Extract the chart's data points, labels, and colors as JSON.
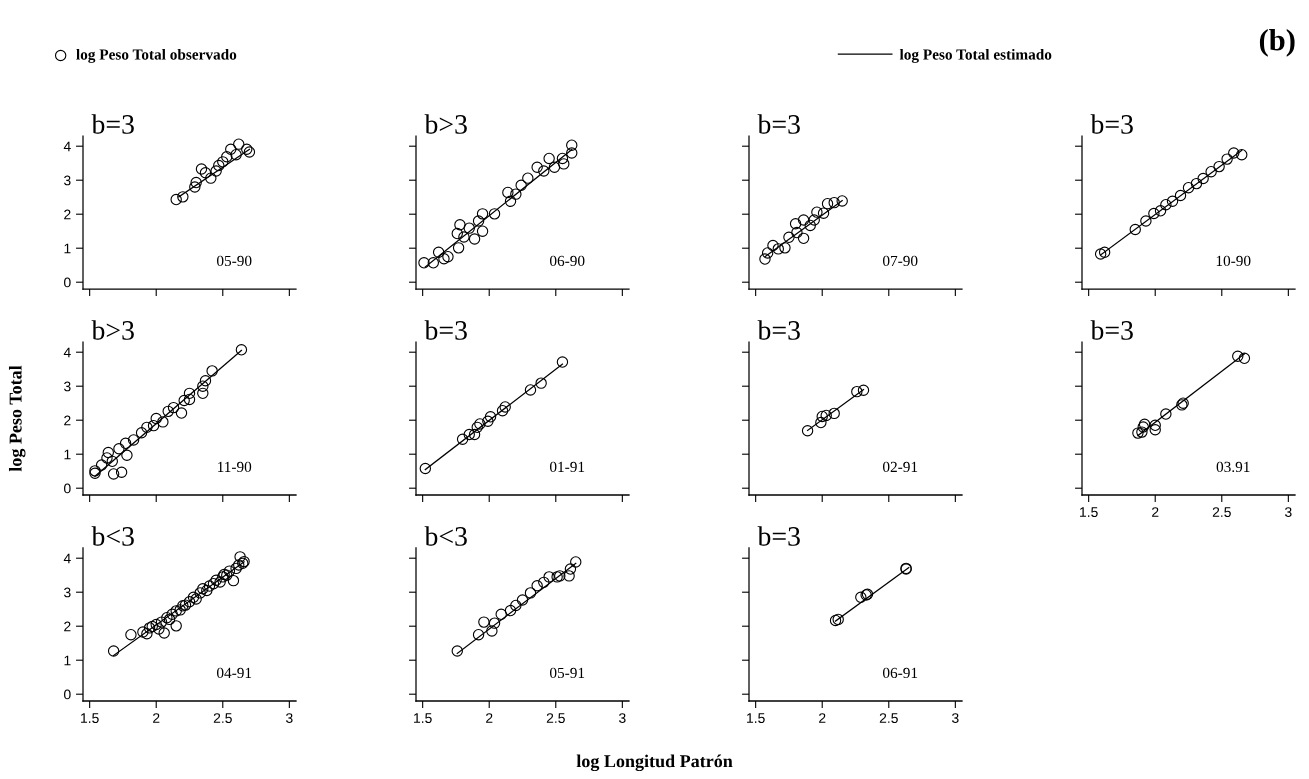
{
  "chart_data": [
    {
      "type": "scatter",
      "legend": "top",
      "tick_labels": "y",
      "xlim": [
        1.45,
        3.05
      ],
      "ylim": [
        -0.2,
        4.3
      ],
      "xticks": [
        1.5,
        2,
        2.5,
        3
      ],
      "yticks": [
        0,
        1,
        2,
        3,
        4
      ],
      "annotations": [
        "b=3",
        "05-90"
      ],
      "series": [
        {
          "name": "log Peso Total observado",
          "marker": "circle",
          "color": "#000000",
          "x": [
            2.15,
            2.2,
            2.29,
            2.3,
            2.34,
            2.37,
            2.41,
            2.45,
            2.47,
            2.5,
            2.53,
            2.56,
            2.6,
            2.62,
            2.68,
            2.7
          ],
          "values": [
            2.43,
            2.51,
            2.8,
            2.93,
            3.33,
            3.22,
            3.06,
            3.27,
            3.43,
            3.54,
            3.69,
            3.91,
            3.75,
            4.06,
            3.91,
            3.83
          ]
        },
        {
          "name": "log Peso Total estimado",
          "type": "line",
          "color": "#000000",
          "x": [
            2.17,
            2.7
          ],
          "values": [
            2.51,
            3.91
          ]
        }
      ]
    },
    {
      "type": "scatter",
      "tick_labels": false,
      "xlim": [
        1.45,
        3.05
      ],
      "ylim": [
        -0.2,
        4.3
      ],
      "xticks": [
        1.5,
        2,
        2.5,
        3
      ],
      "yticks": [
        0,
        1,
        2,
        3,
        4
      ],
      "annotations": [
        "b>3",
        "06-90"
      ],
      "series": [
        {
          "marker": "circle",
          "color": "#000000",
          "x": [
            1.51,
            1.58,
            1.62,
            1.66,
            1.69,
            1.76,
            1.78,
            1.77,
            1.81,
            1.85,
            1.89,
            1.92,
            1.95,
            1.95,
            2.04,
            2.16,
            2.14,
            2.2,
            2.24,
            2.29,
            2.36,
            2.41,
            2.45,
            2.49,
            2.55,
            2.56,
            2.62,
            2.62
          ],
          "values": [
            0.57,
            0.57,
            0.88,
            0.69,
            0.75,
            1.43,
            1.69,
            1.01,
            1.33,
            1.59,
            1.27,
            1.8,
            1.5,
            2.01,
            2.01,
            2.38,
            2.64,
            2.59,
            2.85,
            3.06,
            3.38,
            3.27,
            3.64,
            3.38,
            3.64,
            3.48,
            3.8,
            4.03
          ]
        },
        {
          "type": "line",
          "color": "#000000",
          "x": [
            1.52,
            2.62
          ],
          "values": [
            0.45,
            3.9
          ]
        }
      ]
    },
    {
      "type": "scatter",
      "tick_labels": false,
      "xlim": [
        1.45,
        3.05
      ],
      "ylim": [
        -0.2,
        4.3
      ],
      "xticks": [
        1.5,
        2,
        2.5,
        3
      ],
      "yticks": [
        0,
        1,
        2,
        3,
        4
      ],
      "annotations": [
        "b=3",
        "07-90"
      ],
      "series": [
        {
          "marker": "circle",
          "color": "#000000",
          "x": [
            1.57,
            1.59,
            1.63,
            1.67,
            1.72,
            1.75,
            1.8,
            1.81,
            1.86,
            1.86,
            1.91,
            1.94,
            1.96,
            2.01,
            2.04,
            2.09,
            2.15
          ],
          "values": [
            0.68,
            0.86,
            1.08,
            0.98,
            1.01,
            1.32,
            1.72,
            1.46,
            1.29,
            1.83,
            1.67,
            1.83,
            2.06,
            2.03,
            2.31,
            2.34,
            2.39
          ]
        },
        {
          "type": "line",
          "color": "#000000",
          "x": [
            1.57,
            2.15
          ],
          "values": [
            0.75,
            2.4
          ]
        }
      ]
    },
    {
      "type": "scatter",
      "title": "(b)",
      "tick_labels": false,
      "xlim": [
        1.45,
        3.05
      ],
      "ylim": [
        -0.2,
        4.3
      ],
      "xticks": [
        1.5,
        2,
        2.5,
        3
      ],
      "yticks": [
        0,
        1,
        2,
        3,
        4
      ],
      "annotations": [
        "b=3",
        "10-90"
      ],
      "series": [
        {
          "marker": "circle",
          "color": "#000000",
          "x": [
            1.59,
            1.62,
            1.85,
            1.93,
            1.99,
            2.04,
            2.08,
            2.13,
            2.19,
            2.25,
            2.31,
            2.36,
            2.42,
            2.48,
            2.54,
            2.59,
            2.65
          ],
          "values": [
            0.83,
            0.88,
            1.55,
            1.8,
            2.02,
            2.1,
            2.28,
            2.38,
            2.55,
            2.78,
            2.9,
            3.05,
            3.25,
            3.4,
            3.62,
            3.8,
            3.75
          ]
        },
        {
          "type": "line",
          "color": "#000000",
          "x": [
            1.59,
            2.65
          ],
          "values": [
            0.8,
            3.88
          ]
        }
      ]
    },
    {
      "type": "scatter",
      "ylabel": "log Peso Total",
      "tick_labels": "y",
      "xlim": [
        1.45,
        3.05
      ],
      "ylim": [
        -0.2,
        4.3
      ],
      "xticks": [
        1.5,
        2,
        2.5,
        3
      ],
      "yticks": [
        0,
        1,
        2,
        3,
        4
      ],
      "annotations": [
        "b>3",
        "11-90"
      ],
      "series": [
        {
          "marker": "circle",
          "color": "#000000",
          "x": [
            1.54,
            1.54,
            1.59,
            1.63,
            1.64,
            1.68,
            1.74,
            1.67,
            1.72,
            1.77,
            1.78,
            1.83,
            1.89,
            1.93,
            1.98,
            2.0,
            2.05,
            2.09,
            2.13,
            2.19,
            2.21,
            2.25,
            2.25,
            2.35,
            2.35,
            2.37,
            2.42,
            2.64
          ],
          "values": [
            0.44,
            0.51,
            0.68,
            0.89,
            1.05,
            0.42,
            0.47,
            0.79,
            1.16,
            1.32,
            0.97,
            1.42,
            1.63,
            1.79,
            1.84,
            2.05,
            1.95,
            2.26,
            2.37,
            2.21,
            2.58,
            2.79,
            2.61,
            3.0,
            2.79,
            3.16,
            3.45,
            4.07
          ]
        },
        {
          "type": "line",
          "color": "#000000",
          "x": [
            1.54,
            2.64
          ],
          "values": [
            0.35,
            4.05
          ]
        }
      ]
    },
    {
      "type": "scatter",
      "tick_labels": false,
      "xlim": [
        1.45,
        3.05
      ],
      "ylim": [
        -0.2,
        4.3
      ],
      "xticks": [
        1.5,
        2,
        2.5,
        3
      ],
      "yticks": [
        0,
        1,
        2,
        3,
        4
      ],
      "annotations": [
        "b=3",
        "01-91"
      ],
      "series": [
        {
          "marker": "circle",
          "color": "#000000",
          "x": [
            1.52,
            1.8,
            1.85,
            1.89,
            1.91,
            1.93,
            1.99,
            2.01,
            2.1,
            2.12,
            2.31,
            2.39,
            2.55
          ],
          "values": [
            0.58,
            1.44,
            1.58,
            1.58,
            1.79,
            1.89,
            1.97,
            2.1,
            2.28,
            2.39,
            2.89,
            3.09,
            3.71
          ]
        },
        {
          "type": "line",
          "color": "#000000",
          "x": [
            1.52,
            2.55
          ],
          "values": [
            0.55,
            3.65
          ]
        }
      ]
    },
    {
      "type": "scatter",
      "tick_labels": false,
      "xlim": [
        1.45,
        3.05
      ],
      "ylim": [
        -0.2,
        4.3
      ],
      "xticks": [
        1.5,
        2,
        2.5,
        3
      ],
      "yticks": [
        0,
        1,
        2,
        3,
        4
      ],
      "annotations": [
        "b=3",
        "02-91"
      ],
      "series": [
        {
          "marker": "circle",
          "color": "#000000",
          "x": [
            1.89,
            1.99,
            2.0,
            2.03,
            2.09,
            2.26,
            2.31
          ],
          "values": [
            1.69,
            1.93,
            2.11,
            2.14,
            2.2,
            2.84,
            2.88
          ]
        },
        {
          "type": "line",
          "color": "#000000",
          "x": [
            1.89,
            2.31
          ],
          "values": [
            1.7,
            2.9
          ]
        }
      ]
    },
    {
      "type": "scatter",
      "tick_labels": "x",
      "xlim": [
        1.45,
        3.05
      ],
      "ylim": [
        -0.2,
        4.3
      ],
      "xticks": [
        1.5,
        2,
        2.5,
        3
      ],
      "yticks": [
        0,
        1,
        2,
        3,
        4
      ],
      "annotations": [
        "b=3",
        "03.91"
      ],
      "series": [
        {
          "marker": "circle",
          "color": "#000000",
          "x": [
            1.87,
            1.9,
            1.91,
            1.92,
            2.0,
            2.0,
            2.08,
            2.2,
            2.21,
            2.62,
            2.67
          ],
          "values": [
            1.62,
            1.65,
            1.8,
            1.88,
            1.72,
            1.85,
            2.18,
            2.45,
            2.5,
            3.88,
            3.82
          ]
        },
        {
          "type": "line",
          "color": "#000000",
          "x": [
            1.87,
            2.67
          ],
          "values": [
            1.55,
            3.95
          ]
        }
      ]
    },
    {
      "type": "scatter",
      "xlim": [
        1.45,
        3.05
      ],
      "ylim": [
        -0.2,
        4.3
      ],
      "xticks": [
        1.5,
        2,
        2.5,
        3
      ],
      "yticks": [
        0,
        1,
        2,
        3,
        4
      ],
      "annotations": [
        "b<3",
        "04-91"
      ],
      "series": [
        {
          "marker": "circle",
          "color": "#000000",
          "x": [
            1.68,
            1.81,
            1.9,
            1.93,
            1.95,
            1.97,
            2.0,
            2.02,
            2.04,
            2.06,
            2.08,
            2.1,
            2.12,
            2.15,
            2.15,
            2.18,
            2.2,
            2.22,
            2.25,
            2.28,
            2.3,
            2.33,
            2.35,
            2.38,
            2.4,
            2.43,
            2.45,
            2.48,
            2.5,
            2.51,
            2.53,
            2.55,
            2.58,
            2.6,
            2.62,
            2.63,
            2.65,
            2.66
          ],
          "values": [
            1.27,
            1.75,
            1.83,
            1.78,
            1.95,
            1.99,
            2.05,
            1.92,
            2.12,
            1.8,
            2.25,
            2.2,
            2.35,
            2.01,
            2.45,
            2.48,
            2.6,
            2.62,
            2.72,
            2.85,
            2.8,
            2.98,
            3.1,
            3.05,
            3.18,
            3.25,
            3.35,
            3.3,
            3.45,
            3.52,
            3.5,
            3.62,
            3.34,
            3.7,
            3.8,
            4.04,
            3.85,
            3.9
          ]
        },
        {
          "type": "line",
          "color": "#000000",
          "x": [
            1.68,
            2.66
          ],
          "values": [
            1.14,
            3.89
          ]
        }
      ]
    },
    {
      "type": "scatter",
      "xlabel": "log Longitud Patrón",
      "tick_labels": "x",
      "xlim": [
        1.45,
        3.05
      ],
      "ylim": [
        -0.2,
        4.3
      ],
      "xticks": [
        1.5,
        2,
        2.5,
        3
      ],
      "yticks": [
        0,
        1,
        2,
        3,
        4
      ],
      "annotations": [
        "b<3",
        "05-91"
      ],
      "series": [
        {
          "marker": "circle",
          "color": "#000000",
          "x": [
            1.76,
            1.92,
            1.96,
            2.02,
            2.04,
            2.09,
            2.16,
            2.2,
            2.25,
            2.31,
            2.36,
            2.41,
            2.45,
            2.51,
            2.53,
            2.61,
            2.6,
            2.65
          ],
          "values": [
            1.27,
            1.75,
            2.12,
            1.86,
            2.09,
            2.35,
            2.46,
            2.61,
            2.77,
            2.98,
            3.19,
            3.29,
            3.45,
            3.45,
            3.48,
            3.68,
            3.48,
            3.89
          ]
        },
        {
          "type": "line",
          "color": "#000000",
          "x": [
            1.76,
            2.65
          ],
          "values": [
            1.2,
            3.85
          ]
        }
      ]
    },
    {
      "type": "scatter",
      "tick_labels": "x",
      "xlim": [
        1.45,
        3.05
      ],
      "ylim": [
        -0.2,
        4.3
      ],
      "xticks": [
        1.5,
        2,
        2.5,
        3
      ],
      "yticks": [
        0,
        1,
        2,
        3,
        4
      ],
      "annotations": [
        "b=3",
        "06-91"
      ],
      "series": [
        {
          "marker": "circle",
          "color": "#000000",
          "x": [
            2.1,
            2.12,
            2.29,
            2.33,
            2.34,
            2.63,
            2.63
          ],
          "values": [
            2.17,
            2.2,
            2.85,
            2.92,
            2.94,
            3.68,
            3.7
          ]
        },
        {
          "type": "line",
          "color": "#000000",
          "x": [
            2.1,
            2.65
          ],
          "values": [
            2.15,
            3.72
          ]
        }
      ]
    }
  ]
}
